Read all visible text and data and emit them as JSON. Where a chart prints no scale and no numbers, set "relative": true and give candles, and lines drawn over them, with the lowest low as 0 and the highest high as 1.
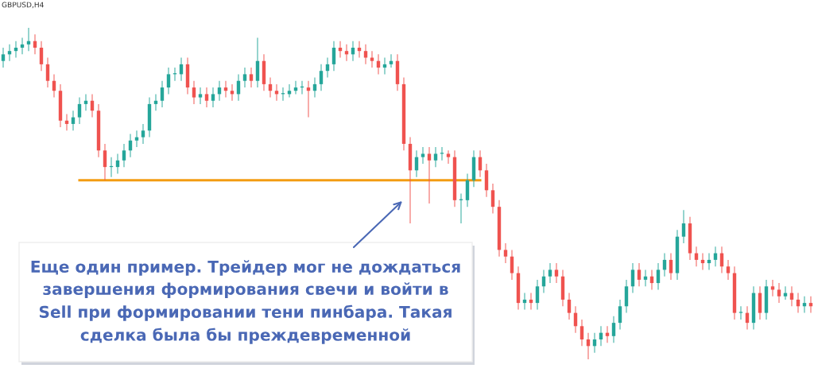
{
  "chart_data": {
    "type": "candlestick",
    "title": "GBPUSD,H4",
    "relative": true,
    "categories": [
      null,
      null,
      null,
      null,
      null,
      null,
      null,
      null,
      null,
      null,
      null,
      null,
      null,
      null,
      null,
      null,
      null,
      null,
      null,
      null,
      null,
      null,
      null,
      null,
      null,
      null,
      null,
      null,
      null,
      null,
      null,
      null,
      null,
      null,
      null,
      null,
      null,
      null,
      null,
      null,
      null,
      null,
      null,
      null,
      null,
      null,
      null,
      null,
      null,
      null,
      null,
      null,
      null,
      null,
      null,
      null,
      null,
      null,
      null,
      null,
      null,
      null,
      null,
      null,
      null,
      null,
      null,
      null,
      null,
      null,
      null,
      null,
      null,
      null,
      null,
      null,
      null,
      null,
      null,
      null,
      null,
      null,
      null,
      null,
      null,
      null,
      null,
      null,
      null,
      null,
      null,
      null,
      null,
      null,
      null,
      null,
      null,
      null,
      null,
      null,
      null,
      null,
      null,
      null,
      null,
      null,
      null,
      null,
      null,
      null,
      null,
      null,
      null,
      null,
      null,
      null,
      null,
      null,
      null,
      null,
      null,
      null,
      null,
      null,
      null,
      null,
      null,
      null
    ],
    "ohlc": [
      [
        0.9,
        0.94,
        0.88,
        0.92
      ],
      [
        0.92,
        0.95,
        0.9,
        0.93
      ],
      [
        0.93,
        0.96,
        0.91,
        0.94
      ],
      [
        0.94,
        0.97,
        0.92,
        0.95
      ],
      [
        0.95,
        1.0,
        0.93,
        0.96
      ],
      [
        0.96,
        0.98,
        0.92,
        0.94
      ],
      [
        0.94,
        0.96,
        0.87,
        0.89
      ],
      [
        0.89,
        0.91,
        0.82,
        0.84
      ],
      [
        0.84,
        0.86,
        0.79,
        0.81
      ],
      [
        0.81,
        0.83,
        0.7,
        0.72
      ],
      [
        0.72,
        0.74,
        0.69,
        0.71
      ],
      [
        0.71,
        0.75,
        0.69,
        0.73
      ],
      [
        0.73,
        0.79,
        0.71,
        0.77
      ],
      [
        0.77,
        0.8,
        0.75,
        0.78
      ],
      [
        0.78,
        0.8,
        0.73,
        0.75
      ],
      [
        0.75,
        0.77,
        0.61,
        0.63
      ],
      [
        0.63,
        0.65,
        0.54,
        0.58
      ],
      [
        0.58,
        0.61,
        0.55,
        0.58
      ],
      [
        0.58,
        0.62,
        0.56,
        0.6
      ],
      [
        0.6,
        0.65,
        0.58,
        0.63
      ],
      [
        0.63,
        0.68,
        0.61,
        0.66
      ],
      [
        0.66,
        0.69,
        0.64,
        0.67
      ],
      [
        0.67,
        0.71,
        0.65,
        0.69
      ],
      [
        0.69,
        0.79,
        0.67,
        0.77
      ],
      [
        0.77,
        0.8,
        0.75,
        0.78
      ],
      [
        0.78,
        0.84,
        0.76,
        0.82
      ],
      [
        0.82,
        0.88,
        0.8,
        0.86
      ],
      [
        0.86,
        0.88,
        0.84,
        0.86
      ],
      [
        0.86,
        0.91,
        0.84,
        0.89
      ],
      [
        0.89,
        0.91,
        0.8,
        0.82
      ],
      [
        0.82,
        0.84,
        0.77,
        0.79
      ],
      [
        0.79,
        0.82,
        0.77,
        0.8
      ],
      [
        0.8,
        0.82,
        0.76,
        0.78
      ],
      [
        0.78,
        0.82,
        0.76,
        0.8
      ],
      [
        0.8,
        0.84,
        0.78,
        0.82
      ],
      [
        0.82,
        0.84,
        0.79,
        0.81
      ],
      [
        0.81,
        0.83,
        0.78,
        0.8
      ],
      [
        0.8,
        0.86,
        0.78,
        0.84
      ],
      [
        0.84,
        0.88,
        0.82,
        0.86
      ],
      [
        0.86,
        0.88,
        0.82,
        0.84
      ],
      [
        0.84,
        0.97,
        0.82,
        0.9
      ],
      [
        0.9,
        0.92,
        0.81,
        0.83
      ],
      [
        0.83,
        0.85,
        0.79,
        0.81
      ],
      [
        0.81,
        0.83,
        0.78,
        0.8
      ],
      [
        0.8,
        0.82,
        0.78,
        0.8
      ],
      [
        0.8,
        0.83,
        0.79,
        0.81
      ],
      [
        0.81,
        0.84,
        0.8,
        0.82
      ],
      [
        0.82,
        0.84,
        0.8,
        0.82
      ],
      [
        0.82,
        0.84,
        0.73,
        0.81
      ],
      [
        0.81,
        0.85,
        0.79,
        0.83
      ],
      [
        0.83,
        0.89,
        0.81,
        0.87
      ],
      [
        0.87,
        0.91,
        0.85,
        0.89
      ],
      [
        0.89,
        0.96,
        0.87,
        0.94
      ],
      [
        0.94,
        0.96,
        0.91,
        0.93
      ],
      [
        0.93,
        0.95,
        0.9,
        0.92
      ],
      [
        0.92,
        0.96,
        0.9,
        0.94
      ],
      [
        0.94,
        0.96,
        0.91,
        0.93
      ],
      [
        0.93,
        0.95,
        0.89,
        0.91
      ],
      [
        0.91,
        0.93,
        0.88,
        0.9
      ],
      [
        0.9,
        0.92,
        0.86,
        0.88
      ],
      [
        0.88,
        0.91,
        0.86,
        0.89
      ],
      [
        0.89,
        0.92,
        0.88,
        0.9
      ],
      [
        0.9,
        0.92,
        0.81,
        0.83
      ],
      [
        0.83,
        0.85,
        0.63,
        0.65
      ],
      [
        0.65,
        0.67,
        0.41,
        0.57
      ],
      [
        0.57,
        0.63,
        0.55,
        0.61
      ],
      [
        0.61,
        0.64,
        0.59,
        0.62
      ],
      [
        0.62,
        0.64,
        0.47,
        0.6
      ],
      [
        0.6,
        0.64,
        0.58,
        0.62
      ],
      [
        0.62,
        0.64,
        0.6,
        0.62
      ],
      [
        0.62,
        0.63,
        0.59,
        0.61
      ],
      [
        0.61,
        0.63,
        0.46,
        0.48
      ],
      [
        0.48,
        0.5,
        0.41,
        0.48
      ],
      [
        0.48,
        0.56,
        0.46,
        0.54
      ],
      [
        0.54,
        0.63,
        0.52,
        0.61
      ],
      [
        0.61,
        0.63,
        0.55,
        0.57
      ],
      [
        0.57,
        0.59,
        0.49,
        0.51
      ],
      [
        0.51,
        0.53,
        0.44,
        0.46
      ],
      [
        0.46,
        0.48,
        0.31,
        0.33
      ],
      [
        0.33,
        0.35,
        0.29,
        0.31
      ],
      [
        0.31,
        0.33,
        0.24,
        0.26
      ],
      [
        0.26,
        0.28,
        0.15,
        0.17
      ],
      [
        0.17,
        0.2,
        0.15,
        0.18
      ],
      [
        0.18,
        0.2,
        0.15,
        0.17
      ],
      [
        0.17,
        0.24,
        0.15,
        0.22
      ],
      [
        0.22,
        0.27,
        0.2,
        0.25
      ],
      [
        0.25,
        0.29,
        0.23,
        0.27
      ],
      [
        0.27,
        0.29,
        0.23,
        0.25
      ],
      [
        0.25,
        0.27,
        0.16,
        0.18
      ],
      [
        0.18,
        0.2,
        0.12,
        0.14
      ],
      [
        0.14,
        0.16,
        0.08,
        0.1
      ],
      [
        0.1,
        0.12,
        0.04,
        0.06
      ],
      [
        0.06,
        0.08,
        0.0,
        0.04
      ],
      [
        0.04,
        0.08,
        0.02,
        0.06
      ],
      [
        0.06,
        0.1,
        0.04,
        0.08
      ],
      [
        0.08,
        0.1,
        0.05,
        0.07
      ],
      [
        0.07,
        0.13,
        0.05,
        0.11
      ],
      [
        0.11,
        0.18,
        0.09,
        0.16
      ],
      [
        0.16,
        0.24,
        0.14,
        0.22
      ],
      [
        0.22,
        0.29,
        0.2,
        0.27
      ],
      [
        0.27,
        0.29,
        0.22,
        0.24
      ],
      [
        0.24,
        0.27,
        0.22,
        0.25
      ],
      [
        0.25,
        0.27,
        0.21,
        0.23
      ],
      [
        0.23,
        0.29,
        0.21,
        0.27
      ],
      [
        0.27,
        0.32,
        0.25,
        0.3
      ],
      [
        0.3,
        0.32,
        0.24,
        0.26
      ],
      [
        0.26,
        0.39,
        0.24,
        0.37
      ],
      [
        0.37,
        0.45,
        0.35,
        0.41
      ],
      [
        0.41,
        0.43,
        0.3,
        0.32
      ],
      [
        0.32,
        0.34,
        0.28,
        0.3
      ],
      [
        0.3,
        0.32,
        0.27,
        0.29
      ],
      [
        0.29,
        0.32,
        0.27,
        0.3
      ],
      [
        0.3,
        0.34,
        0.28,
        0.32
      ],
      [
        0.32,
        0.34,
        0.26,
        0.28
      ],
      [
        0.28,
        0.3,
        0.24,
        0.26
      ],
      [
        0.26,
        0.28,
        0.12,
        0.14
      ],
      [
        0.14,
        0.16,
        0.12,
        0.14
      ],
      [
        0.14,
        0.16,
        0.09,
        0.11
      ],
      [
        0.11,
        0.22,
        0.09,
        0.2
      ],
      [
        0.2,
        0.22,
        0.12,
        0.14
      ],
      [
        0.14,
        0.24,
        0.12,
        0.22
      ],
      [
        0.22,
        0.24,
        0.19,
        0.21
      ],
      [
        0.21,
        0.23,
        0.17,
        0.19
      ],
      [
        0.19,
        0.22,
        0.18,
        0.2
      ],
      [
        0.2,
        0.22,
        0.16,
        0.18
      ],
      [
        0.18,
        0.2,
        0.14,
        0.16
      ],
      [
        0.16,
        0.19,
        0.14,
        0.17
      ],
      [
        0.17,
        0.19,
        0.14,
        0.16
      ]
    ],
    "series": [
      {
        "type": "line",
        "color": "#f39c12",
        "values": [
          null,
          null,
          null,
          null,
          null,
          null,
          null,
          null,
          null,
          null,
          null,
          null,
          0.54,
          0.54,
          0.54,
          0.54,
          0.54,
          0.54,
          0.54,
          0.54,
          0.54,
          0.54,
          0.54,
          0.54,
          0.54,
          0.54,
          0.54,
          0.54,
          0.54,
          0.54,
          0.54,
          0.54,
          0.54,
          0.54,
          0.54,
          0.54,
          0.54,
          0.54,
          0.54,
          0.54,
          0.54,
          0.54,
          0.54,
          0.54,
          0.54,
          0.54,
          0.54,
          0.54,
          0.54,
          0.54,
          0.54,
          0.54,
          0.54,
          0.54,
          0.54,
          0.54,
          0.54,
          0.54,
          0.54,
          0.54,
          0.54,
          0.54,
          0.54,
          0.54,
          0.54,
          0.54,
          0.54,
          0.54,
          0.54,
          0.54,
          0.54,
          0.54,
          0.54,
          0.54,
          0.54,
          0.54,
          null,
          null,
          null,
          null,
          null,
          null,
          null,
          null,
          null,
          null,
          null,
          null,
          null,
          null,
          null,
          null,
          null,
          null,
          null,
          null,
          null,
          null,
          null,
          null,
          null,
          null,
          null,
          null,
          null,
          null,
          null,
          null,
          null,
          null,
          null,
          null,
          null,
          null,
          null,
          null,
          null,
          null,
          null,
          null,
          null,
          null,
          null,
          null,
          null,
          null,
          null,
          null
        ]
      }
    ],
    "annotations": [
      "Еще один пример. Трейдер мог не дождаться\nзавершения формирования свечи и войти в\nSell при формировании тени пинбара. Такая\nсделка была бы преждевременной"
    ]
  }
}
